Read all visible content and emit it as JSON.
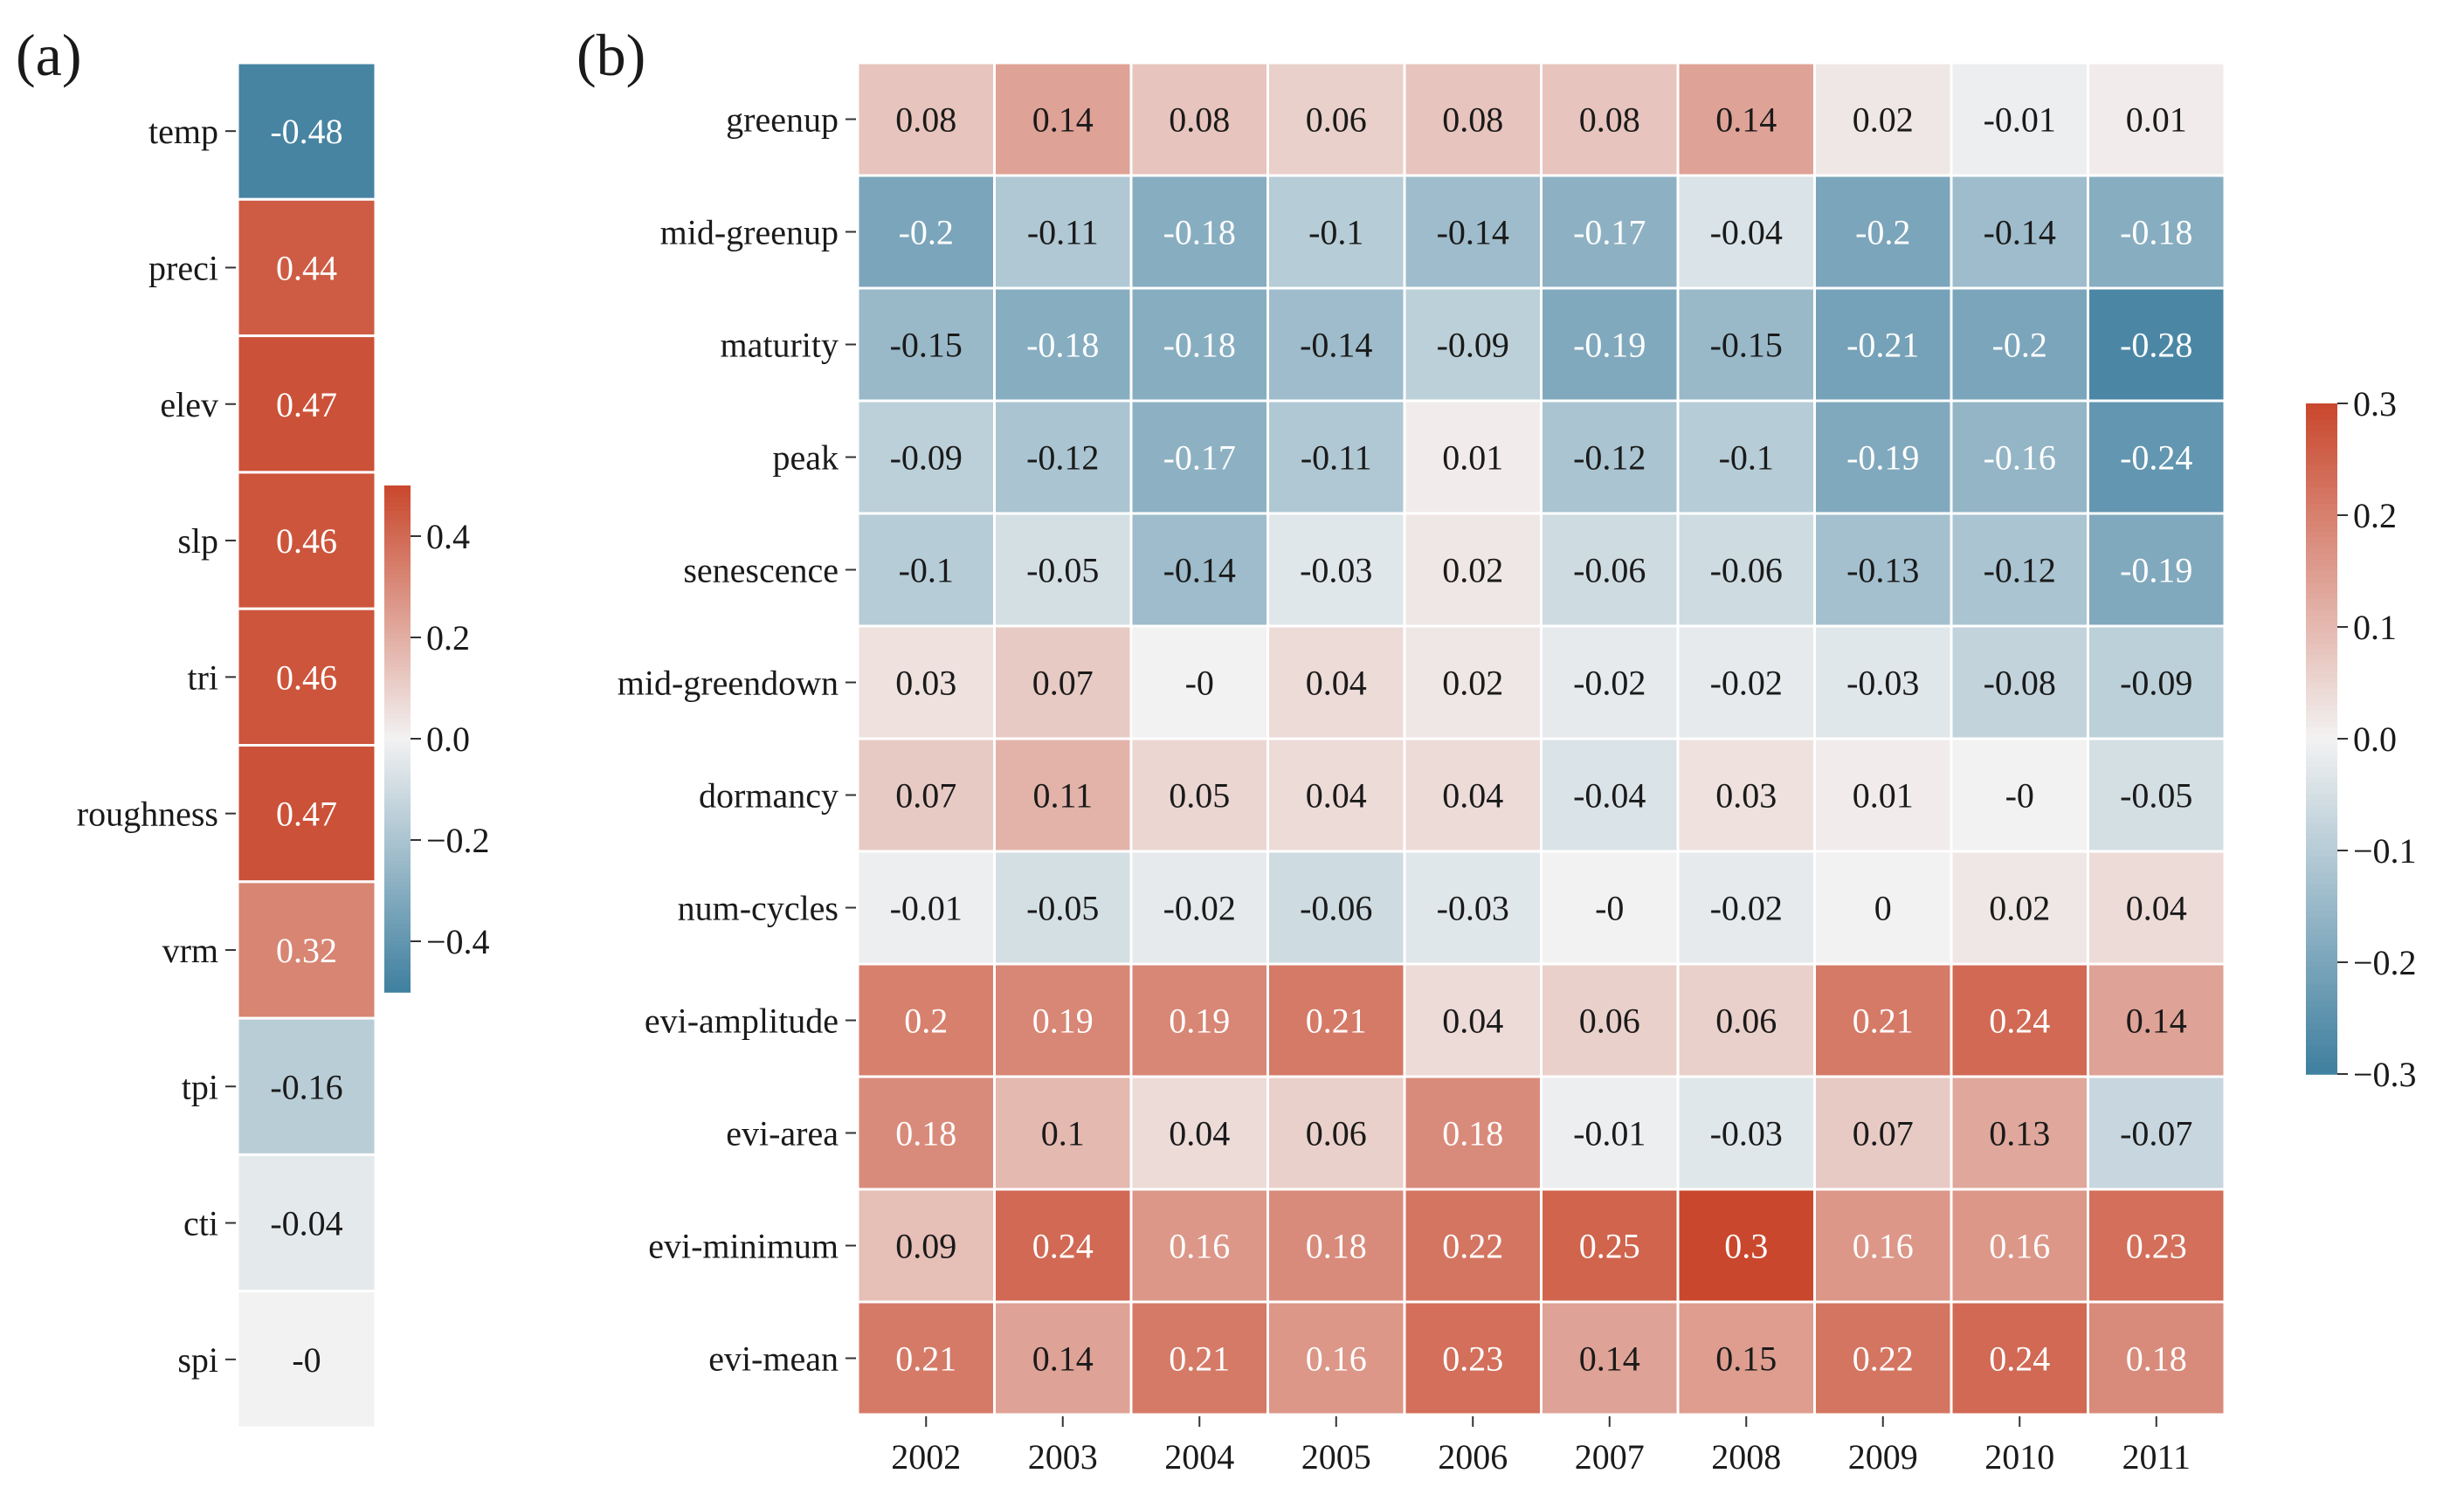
{
  "chart_data": [
    {
      "type": "heatmap",
      "panel_label": "(a)",
      "rows": [
        "temp",
        "preci",
        "elev",
        "slp",
        "tri",
        "roughness",
        "vrm",
        "tpi",
        "cti",
        "spi"
      ],
      "values": [
        -0.48,
        0.44,
        0.47,
        0.46,
        0.46,
        0.47,
        0.32,
        -0.16,
        -0.04,
        0
      ],
      "cell_labels": [
        "-0.48",
        "0.44",
        "0.47",
        "0.46",
        "0.46",
        "0.47",
        "0.32",
        "-0.16",
        "-0.04",
        "-0"
      ],
      "colorbar": {
        "vmin": -0.5,
        "vmax": 0.5,
        "ticks": [
          0.4,
          0.2,
          0.0,
          -0.2,
          -0.4
        ],
        "tick_labels": [
          "0.4",
          "0.2",
          "0.0",
          "−0.2",
          "−0.4"
        ]
      }
    },
    {
      "type": "heatmap",
      "panel_label": "(b)",
      "rows": [
        "greenup",
        "mid-greenup",
        "maturity",
        "peak",
        "senescence",
        "mid-greendown",
        "dormancy",
        "num-cycles",
        "evi-amplitude",
        "evi-area",
        "evi-minimum",
        "evi-mean"
      ],
      "columns": [
        "2002",
        "2003",
        "2004",
        "2005",
        "2006",
        "2007",
        "2008",
        "2009",
        "2010",
        "2011"
      ],
      "values": [
        [
          0.08,
          0.14,
          0.08,
          0.06,
          0.08,
          0.08,
          0.14,
          0.02,
          -0.01,
          0.01
        ],
        [
          -0.2,
          -0.11,
          -0.18,
          -0.1,
          -0.14,
          -0.17,
          -0.04,
          -0.2,
          -0.14,
          -0.18
        ],
        [
          -0.15,
          -0.18,
          -0.18,
          -0.14,
          -0.09,
          -0.19,
          -0.15,
          -0.21,
          -0.2,
          -0.28
        ],
        [
          -0.09,
          -0.12,
          -0.17,
          -0.11,
          0.01,
          -0.12,
          -0.1,
          -0.19,
          -0.16,
          -0.24
        ],
        [
          -0.1,
          -0.05,
          -0.14,
          -0.03,
          0.02,
          -0.06,
          -0.06,
          -0.13,
          -0.12,
          -0.19
        ],
        [
          0.03,
          0.07,
          0,
          0.04,
          0.02,
          -0.02,
          -0.02,
          -0.03,
          -0.08,
          -0.09
        ],
        [
          0.07,
          0.11,
          0.05,
          0.04,
          0.04,
          -0.04,
          0.03,
          0.01,
          0,
          -0.05
        ],
        [
          -0.01,
          -0.05,
          -0.02,
          -0.06,
          -0.03,
          0,
          -0.02,
          0,
          0.02,
          0.04
        ],
        [
          0.2,
          0.19,
          0.19,
          0.21,
          0.04,
          0.06,
          0.06,
          0.21,
          0.24,
          0.14
        ],
        [
          0.18,
          0.1,
          0.04,
          0.06,
          0.18,
          -0.01,
          -0.03,
          0.07,
          0.13,
          -0.07
        ],
        [
          0.09,
          0.24,
          0.16,
          0.18,
          0.22,
          0.25,
          0.3,
          0.16,
          0.16,
          0.23
        ],
        [
          0.21,
          0.14,
          0.21,
          0.16,
          0.23,
          0.14,
          0.15,
          0.22,
          0.24,
          0.18
        ]
      ],
      "cell_labels": [
        [
          "0.08",
          "0.14",
          "0.08",
          "0.06",
          "0.08",
          "0.08",
          "0.14",
          "0.02",
          "-0.01",
          "0.01"
        ],
        [
          "-0.2",
          "-0.11",
          "-0.18",
          "-0.1",
          "-0.14",
          "-0.17",
          "-0.04",
          "-0.2",
          "-0.14",
          "-0.18"
        ],
        [
          "-0.15",
          "-0.18",
          "-0.18",
          "-0.14",
          "-0.09",
          "-0.19",
          "-0.15",
          "-0.21",
          "-0.2",
          "-0.28"
        ],
        [
          "-0.09",
          "-0.12",
          "-0.17",
          "-0.11",
          "0.01",
          "-0.12",
          "-0.1",
          "-0.19",
          "-0.16",
          "-0.24"
        ],
        [
          "-0.1",
          "-0.05",
          "-0.14",
          "-0.03",
          "0.02",
          "-0.06",
          "-0.06",
          "-0.13",
          "-0.12",
          "-0.19"
        ],
        [
          "0.03",
          "0.07",
          "-0",
          "0.04",
          "0.02",
          "-0.02",
          "-0.02",
          "-0.03",
          "-0.08",
          "-0.09"
        ],
        [
          "0.07",
          "0.11",
          "0.05",
          "0.04",
          "0.04",
          "-0.04",
          "0.03",
          "0.01",
          "-0",
          "-0.05"
        ],
        [
          "-0.01",
          "-0.05",
          "-0.02",
          "-0.06",
          "-0.03",
          "-0",
          "-0.02",
          "0",
          "0.02",
          "0.04"
        ],
        [
          "0.2",
          "0.19",
          "0.19",
          "0.21",
          "0.04",
          "0.06",
          "0.06",
          "0.21",
          "0.24",
          "0.14"
        ],
        [
          "0.18",
          "0.1",
          "0.04",
          "0.06",
          "0.18",
          "-0.01",
          "-0.03",
          "0.07",
          "0.13",
          "-0.07"
        ],
        [
          "0.09",
          "0.24",
          "0.16",
          "0.18",
          "0.22",
          "0.25",
          "0.3",
          "0.16",
          "0.16",
          "0.23"
        ],
        [
          "0.21",
          "0.14",
          "0.21",
          "0.16",
          "0.23",
          "0.14",
          "0.15",
          "0.22",
          "0.24",
          "0.18"
        ]
      ],
      "colorbar": {
        "vmin": -0.3,
        "vmax": 0.3,
        "ticks": [
          0.3,
          0.2,
          0.1,
          0.0,
          -0.1,
          -0.2,
          -0.3
        ],
        "tick_labels": [
          "0.3",
          "0.2",
          "0.1",
          "0.0",
          "−0.1",
          "−0.2",
          "−0.3"
        ]
      }
    }
  ],
  "colors": {
    "negative": "#3f7f9f",
    "neutral": "#f2f2f2",
    "positive": "#c9472c",
    "text_dark": "#1a1a1a",
    "text_light": "#ffffff"
  }
}
